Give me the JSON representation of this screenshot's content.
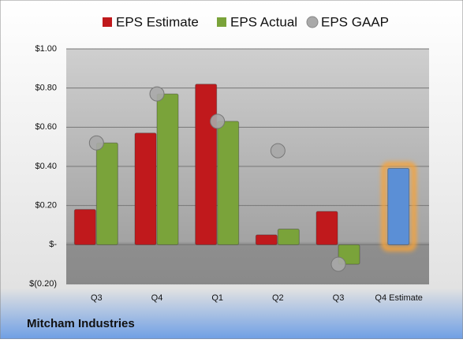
{
  "chart_data": {
    "type": "bar",
    "footer": "Mitcham Industries",
    "categories": [
      "Q3",
      "Q4",
      "Q1",
      "Q2",
      "Q3",
      "Q4 Estimate"
    ],
    "series": [
      {
        "name": "EPS Estimate",
        "color": "#c0191c",
        "style": "bar",
        "values": [
          0.18,
          0.57,
          0.82,
          0.05,
          0.17,
          0.39
        ]
      },
      {
        "name": "EPS Actual",
        "color": "#7aa33a",
        "style": "bar",
        "values": [
          0.52,
          0.77,
          0.63,
          0.08,
          -0.1,
          null
        ]
      },
      {
        "name": "EPS GAAP",
        "color": "#a9a9a9",
        "style": "circle",
        "values": [
          0.52,
          0.77,
          0.63,
          0.48,
          -0.1,
          null
        ]
      }
    ],
    "highlight_color": "#5b8fd6",
    "highlight_glow": "#f5a33a",
    "ylim": [
      -0.2,
      1.0
    ],
    "yticks": [
      {
        "value": -0.2,
        "label": "$(0.20)"
      },
      {
        "value": 0,
        "label": "$-"
      },
      {
        "value": 0.2,
        "label": "$0.20"
      },
      {
        "value": 0.4,
        "label": "$0.40"
      },
      {
        "value": 0.6,
        "label": "$0.60"
      },
      {
        "value": 0.8,
        "label": "$0.80"
      },
      {
        "value": 1.0,
        "label": "$1.00"
      }
    ],
    "grid": true
  }
}
